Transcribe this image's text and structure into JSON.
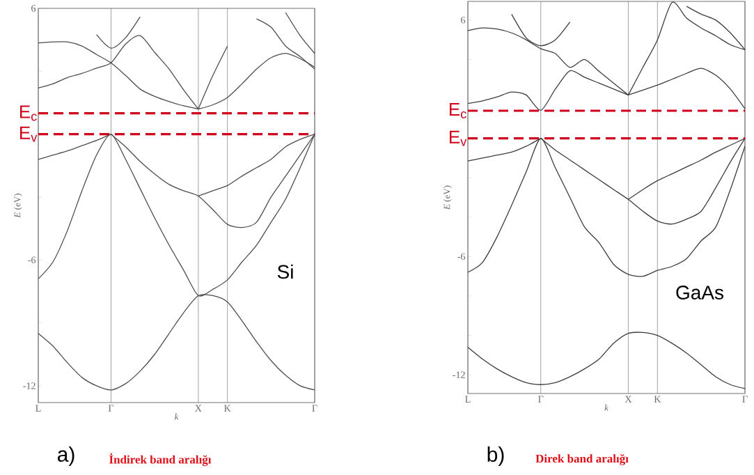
{
  "chart_data": [
    {
      "type": "line",
      "xlabel": "k",
      "ylabel": "*E* (eV)",
      "ylim": [
        -12.8,
        6
      ],
      "categories": [
        "L",
        null,
        null,
        null,
        null,
        "Γ",
        null,
        null,
        null,
        null,
        null,
        "X",
        null,
        "K",
        null,
        null,
        null,
        null,
        null,
        "Γ"
      ],
      "yticks": [
        6,
        {
          "value": 3,
          "label": null
        },
        {
          "value": 0,
          "label": null
        },
        {
          "value": -3,
          "label": null
        },
        -6,
        {
          "value": -9,
          "label": null
        },
        -12
      ],
      "grid": "x",
      "ref_lines": [
        {
          "axis": "y",
          "value": 1.0,
          "label": "E$_{c}$",
          "color": "#d0021b",
          "line_style": "dashed"
        },
        {
          "axis": "y",
          "value": 0,
          "label": "E$_{v}$",
          "color": "#d0021b",
          "line_style": "dashed"
        }
      ],
      "annotations": [
        "Si",
        "a)",
        "İndirek band aralığı"
      ],
      "series": [
        {
          "color": "#4d4d4d",
          "values": [
            -9.5,
            -10.1,
            -10.9,
            -11.6,
            -12.0,
            -12.2,
            -11.9,
            -11.3,
            -10.5,
            -9.5,
            -8.5,
            -7.7,
            -7.7,
            -8.0,
            -8.9,
            -9.9,
            -10.8,
            -11.5,
            -12.0,
            -12.2
          ]
        },
        {
          "color": "#4d4d4d",
          "values": [
            -6.9,
            -6.1,
            -4.6,
            -2.7,
            -1.0,
            0,
            -1.2,
            -2.6,
            -4.0,
            -5.3,
            -6.5,
            -7.7,
            -7.4,
            -6.95,
            -6.1,
            -5.3,
            -4.2,
            -3.1,
            -1.6,
            0
          ]
        },
        {
          "color": "#4d4d4d",
          "values": [
            -1.2,
            -1.0,
            -0.8,
            -0.55,
            -0.3,
            0,
            null,
            null,
            null,
            null,
            null,
            null,
            null,
            null,
            null,
            null,
            null,
            null,
            null,
            null
          ]
        },
        {
          "color": "#4d4d4d",
          "values": [
            null,
            null,
            null,
            null,
            null,
            0,
            -0.6,
            -1.3,
            -1.9,
            -2.4,
            -2.7,
            -2.95,
            -3.6,
            -4.3,
            -4.45,
            -4.2,
            -3.0,
            -2.0,
            -1.0,
            0
          ]
        },
        {
          "color": "#4d4d4d",
          "values": [
            null,
            null,
            null,
            null,
            null,
            null,
            null,
            null,
            null,
            null,
            null,
            -2.95,
            -2.7,
            -2.45,
            -2.0,
            -1.6,
            -1.2,
            -0.6,
            -0.25,
            0
          ]
        },
        {
          "color": "#4d4d4d",
          "values": [
            2.2,
            2.4,
            2.7,
            2.9,
            3.15,
            3.4,
            4.3,
            4.7,
            3.9,
            3.1,
            2.1,
            1.2,
            null,
            null,
            null,
            null,
            null,
            null,
            null,
            null
          ]
        },
        {
          "color": "#4d4d4d",
          "values": [
            4.35,
            4.4,
            4.4,
            4.2,
            3.8,
            3.4,
            2.8,
            2.15,
            1.8,
            1.55,
            1.35,
            1.2,
            null,
            null,
            null,
            null,
            null,
            null,
            null,
            null
          ]
        },
        {
          "color": "#4d4d4d",
          "values": [
            null,
            null,
            null,
            null,
            null,
            null,
            null,
            null,
            null,
            null,
            null,
            1.2,
            2.8,
            4.2,
            null,
            null,
            null,
            null,
            null,
            null
          ]
        },
        {
          "color": "#4d4d4d",
          "values": [
            null,
            null,
            null,
            null,
            null,
            null,
            null,
            null,
            null,
            null,
            null,
            1.2,
            1.4,
            1.75,
            2.4,
            3.1,
            3.65,
            3.85,
            3.6,
            3.2
          ]
        },
        {
          "color": "#4d4d4d",
          "values": [
            null,
            null,
            null,
            null,
            4.75,
            4.1,
            4.6,
            5.6,
            null,
            null,
            null,
            null,
            null,
            null,
            null,
            null,
            null,
            null,
            null,
            null
          ]
        },
        {
          "color": "#4d4d4d",
          "values": [
            null,
            null,
            null,
            null,
            null,
            null,
            null,
            null,
            null,
            null,
            null,
            null,
            null,
            null,
            null,
            5.5,
            5.1,
            4.2,
            3.7,
            3.1
          ]
        },
        {
          "color": "#4d4d4d",
          "values": [
            null,
            null,
            null,
            null,
            null,
            null,
            null,
            null,
            null,
            null,
            null,
            null,
            null,
            null,
            null,
            null,
            null,
            5.8,
            4.7,
            3.85
          ]
        }
      ]
    },
    {
      "type": "line",
      "xlabel": "k",
      "ylabel": "*E* (eV)",
      "ylim": [
        -12.95,
        6.95
      ],
      "categories": [
        "L",
        null,
        null,
        null,
        null,
        "Γ",
        null,
        null,
        null,
        null,
        null,
        "X",
        null,
        "K",
        null,
        null,
        null,
        null,
        null,
        "Γ"
      ],
      "yticks": [
        6,
        {
          "value": 4,
          "label": null
        },
        {
          "value": 2,
          "label": null
        },
        {
          "value": 0,
          "label": null
        },
        {
          "value": -2,
          "label": null
        },
        {
          "value": -4,
          "label": null
        },
        -6,
        {
          "value": -8,
          "label": null
        },
        {
          "value": -10,
          "label": null
        },
        -12
      ],
      "grid": "x",
      "ref_lines": [
        {
          "axis": "y",
          "value": 1.4,
          "label": "E$_{c}$",
          "color": "#d0021b",
          "line_style": "dashed"
        },
        {
          "axis": "y",
          "value": 0,
          "label": "E$_{v}$",
          "color": "#d0021b",
          "line_style": "dashed"
        }
      ],
      "annotations": [
        "GaAs",
        "b)",
        "Direk band aralığı"
      ],
      "series": [
        {
          "color": "#3d3d3d",
          "values": [
            -10.6,
            -11.2,
            -11.7,
            -12.1,
            -12.4,
            -12.5,
            -12.4,
            -12.1,
            -11.7,
            -11.2,
            -10.4,
            -9.9,
            -9.85,
            -10.0,
            -10.4,
            -10.9,
            -11.5,
            -12.1,
            -12.5,
            -12.7
          ]
        },
        {
          "color": "#3d3d3d",
          "values": [
            -6.8,
            -6.3,
            -5.0,
            -3.4,
            -1.7,
            0,
            -1.5,
            -3.0,
            -4.5,
            -5.3,
            -6.4,
            -6.9,
            -7.0,
            -6.7,
            -6.5,
            -6.1,
            -5.2,
            -4.5,
            -2.6,
            -0.4
          ]
        },
        {
          "color": "#3d3d3d",
          "values": [
            null,
            null,
            null,
            null,
            null,
            0,
            -0.6,
            -1.1,
            -1.6,
            -2.1,
            -2.6,
            -3.1,
            -3.7,
            -4.2,
            -4.35,
            -4.1,
            -3.7,
            -2.5,
            -1.2,
            0
          ]
        },
        {
          "color": "#3d3d3d",
          "values": [
            null,
            null,
            null,
            null,
            null,
            null,
            null,
            null,
            null,
            null,
            null,
            -3.1,
            -2.6,
            -2.15,
            -1.8,
            -1.45,
            -1.1,
            -0.7,
            -0.35,
            0
          ]
        },
        {
          "color": "#3d3d3d",
          "values": [
            -1.15,
            -1.0,
            -0.85,
            -0.7,
            -0.4,
            0,
            null,
            null,
            null,
            null,
            null,
            null,
            null,
            null,
            null,
            null,
            null,
            null,
            null,
            null
          ]
        },
        {
          "color": "#3d3d3d",
          "values": [
            1.77,
            1.9,
            2.1,
            2.35,
            2.2,
            1.42,
            2.5,
            3.43,
            3.1,
            2.8,
            2.5,
            2.2,
            null,
            null,
            null,
            null,
            null,
            null,
            null,
            null
          ]
        },
        {
          "color": "#3d3d3d",
          "values": [
            5.47,
            5.6,
            5.55,
            5.35,
            5.0,
            4.55,
            4.3,
            3.6,
            4.0,
            3.4,
            2.8,
            2.2,
            null,
            null,
            null,
            null,
            null,
            null,
            null,
            null
          ]
        },
        {
          "color": "#3d3d3d",
          "values": [
            null,
            null,
            null,
            null,
            null,
            null,
            null,
            null,
            null,
            null,
            null,
            2.2,
            3.6,
            5.0,
            6.9,
            6.1,
            5.6,
            5.2,
            4.75,
            4.5
          ]
        },
        {
          "color": "#3d3d3d",
          "values": [
            null,
            null,
            null,
            null,
            null,
            null,
            null,
            null,
            null,
            null,
            null,
            2.2,
            2.45,
            2.7,
            3.0,
            3.3,
            3.55,
            3.2,
            2.5,
            1.5
          ]
        },
        {
          "color": "#3d3d3d",
          "values": [
            null,
            null,
            null,
            6.3,
            5.1,
            4.7,
            5.0,
            5.9,
            null,
            null,
            null,
            null,
            null,
            null,
            null,
            null,
            null,
            null,
            null,
            null
          ]
        },
        {
          "color": "#3d3d3d",
          "values": [
            null,
            null,
            null,
            null,
            null,
            null,
            null,
            null,
            null,
            null,
            null,
            null,
            null,
            null,
            null,
            6.7,
            6.3,
            6.0,
            5.35,
            4.5
          ]
        }
      ]
    }
  ]
}
